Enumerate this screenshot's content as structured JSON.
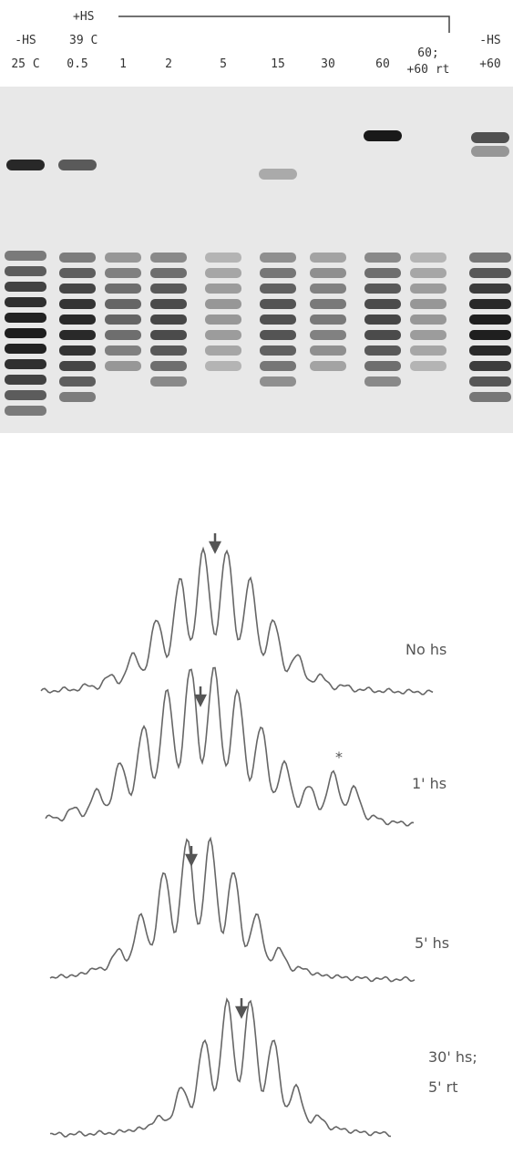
{
  "gel": {
    "group_label": "+HS",
    "group_temp": "39 C",
    "lanes": [
      [
        "-HS",
        "25 C"
      ],
      [
        "0.5"
      ],
      [
        "1"
      ],
      [
        "2"
      ],
      [
        "5"
      ],
      [
        "15"
      ],
      [
        "30"
      ],
      [
        "60"
      ],
      [
        "60;",
        "+60 rt"
      ],
      [
        "-HS",
        "+60"
      ]
    ]
  },
  "traces": [
    [
      "No hs"
    ],
    [
      "1' hs"
    ],
    [
      "5' hs"
    ],
    [
      "30' hs;",
      "5' rt"
    ]
  ],
  "asterisk": "*"
}
